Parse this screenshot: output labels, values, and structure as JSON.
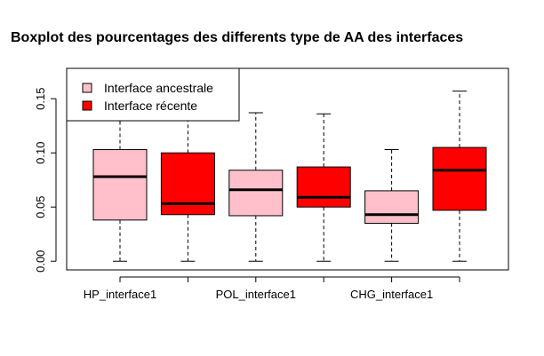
{
  "chart_data": {
    "type": "boxplot",
    "title": "Boxplot des  pourcentages des differents type de AA des interfaces",
    "xlabel": "",
    "ylabel": "",
    "ylim": [
      -0.008,
      0.178
    ],
    "yticks": [
      0.0,
      0.05,
      0.1,
      0.15
    ],
    "ytick_labels": [
      "0.00",
      "0.05",
      "0.10",
      "0.15"
    ],
    "xtick_labels": [
      "HP_interface1",
      "POL_interface1",
      "CHG_interface1"
    ],
    "legend": {
      "position": "top-left",
      "entries": [
        {
          "label": "Interface  ancestrale",
          "color": "#FFC0CB"
        },
        {
          "label": "Interface récente",
          "color": "#FF0000"
        }
      ]
    },
    "boxes": [
      {
        "group": "Interface  ancestrale",
        "min": 0.0,
        "q1": 0.038,
        "median": 0.078,
        "q3": 0.103,
        "max": 0.137,
        "color": "#FFC0CB"
      },
      {
        "group": "Interface récente",
        "min": 0.0,
        "q1": 0.043,
        "median": 0.053,
        "q3": 0.1,
        "max": 0.137,
        "color": "#FF0000"
      },
      {
        "group": "Interface  ancestrale",
        "min": 0.0,
        "q1": 0.042,
        "median": 0.066,
        "q3": 0.084,
        "max": 0.137,
        "color": "#FFC0CB"
      },
      {
        "group": "Interface récente",
        "min": 0.0,
        "q1": 0.05,
        "median": 0.059,
        "q3": 0.087,
        "max": 0.136,
        "color": "#FF0000"
      },
      {
        "group": "Interface  ancestrale",
        "min": 0.0,
        "q1": 0.035,
        "median": 0.043,
        "q3": 0.065,
        "max": 0.103,
        "color": "#FFC0CB"
      },
      {
        "group": "Interface récente",
        "min": 0.0,
        "q1": 0.047,
        "median": 0.084,
        "q3": 0.105,
        "max": 0.157,
        "color": "#FF0000"
      }
    ]
  }
}
